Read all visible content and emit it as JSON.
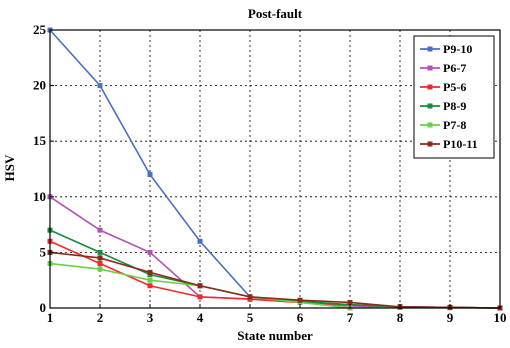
{
  "chart_data": {
    "type": "line",
    "title": "Post-fault",
    "xlabel": "State number",
    "ylabel": "HSV",
    "xlim": [
      1,
      10
    ],
    "ylim": [
      0,
      25
    ],
    "x_ticks": [
      1,
      2,
      3,
      4,
      5,
      6,
      7,
      8,
      9,
      10
    ],
    "y_ticks": [
      0,
      5,
      10,
      15,
      20,
      25
    ],
    "grid": true,
    "legend_position": "top-right",
    "series": [
      {
        "name": "P9-10",
        "color": "#4a6fc4",
        "x": [
          1,
          2,
          3,
          4,
          5,
          6,
          7,
          8,
          9,
          10
        ],
        "y": [
          25,
          20,
          12,
          6,
          1,
          0.5,
          0.2,
          0.1,
          0.05,
          0
        ]
      },
      {
        "name": "P6-7",
        "color": "#b54fb8",
        "x": [
          1,
          2,
          3,
          4,
          5,
          6,
          7,
          8,
          9,
          10
        ],
        "y": [
          10,
          7,
          5,
          1,
          0.8,
          0.5,
          0.2,
          0.1,
          0.05,
          0
        ]
      },
      {
        "name": "P5-6",
        "color": "#ee2b2b",
        "x": [
          1,
          2,
          3,
          4,
          5,
          6,
          7,
          8,
          9,
          10
        ],
        "y": [
          6,
          4,
          2,
          1,
          0.8,
          0.5,
          0.3,
          0.1,
          0.05,
          0
        ]
      },
      {
        "name": "P8-9",
        "color": "#1b8a3a",
        "x": [
          1,
          2,
          3,
          4,
          5,
          6,
          7,
          8,
          9,
          10
        ],
        "y": [
          7,
          5,
          3,
          2,
          1,
          0.6,
          0.3,
          0.1,
          0.05,
          0
        ]
      },
      {
        "name": "P7-8",
        "color": "#6ad04a",
        "x": [
          1,
          2,
          3,
          4,
          5,
          6,
          7,
          8,
          9,
          10
        ],
        "y": [
          4,
          3.5,
          2.5,
          2,
          1,
          0.5,
          0,
          0.05,
          0.02,
          0
        ]
      },
      {
        "name": "P10-11",
        "color": "#8b2a1a",
        "x": [
          1,
          2,
          3,
          4,
          5,
          6,
          7,
          8,
          9,
          10
        ],
        "y": [
          5,
          4.5,
          3.2,
          2,
          1,
          0.7,
          0.5,
          0.1,
          0.05,
          0
        ]
      }
    ]
  }
}
